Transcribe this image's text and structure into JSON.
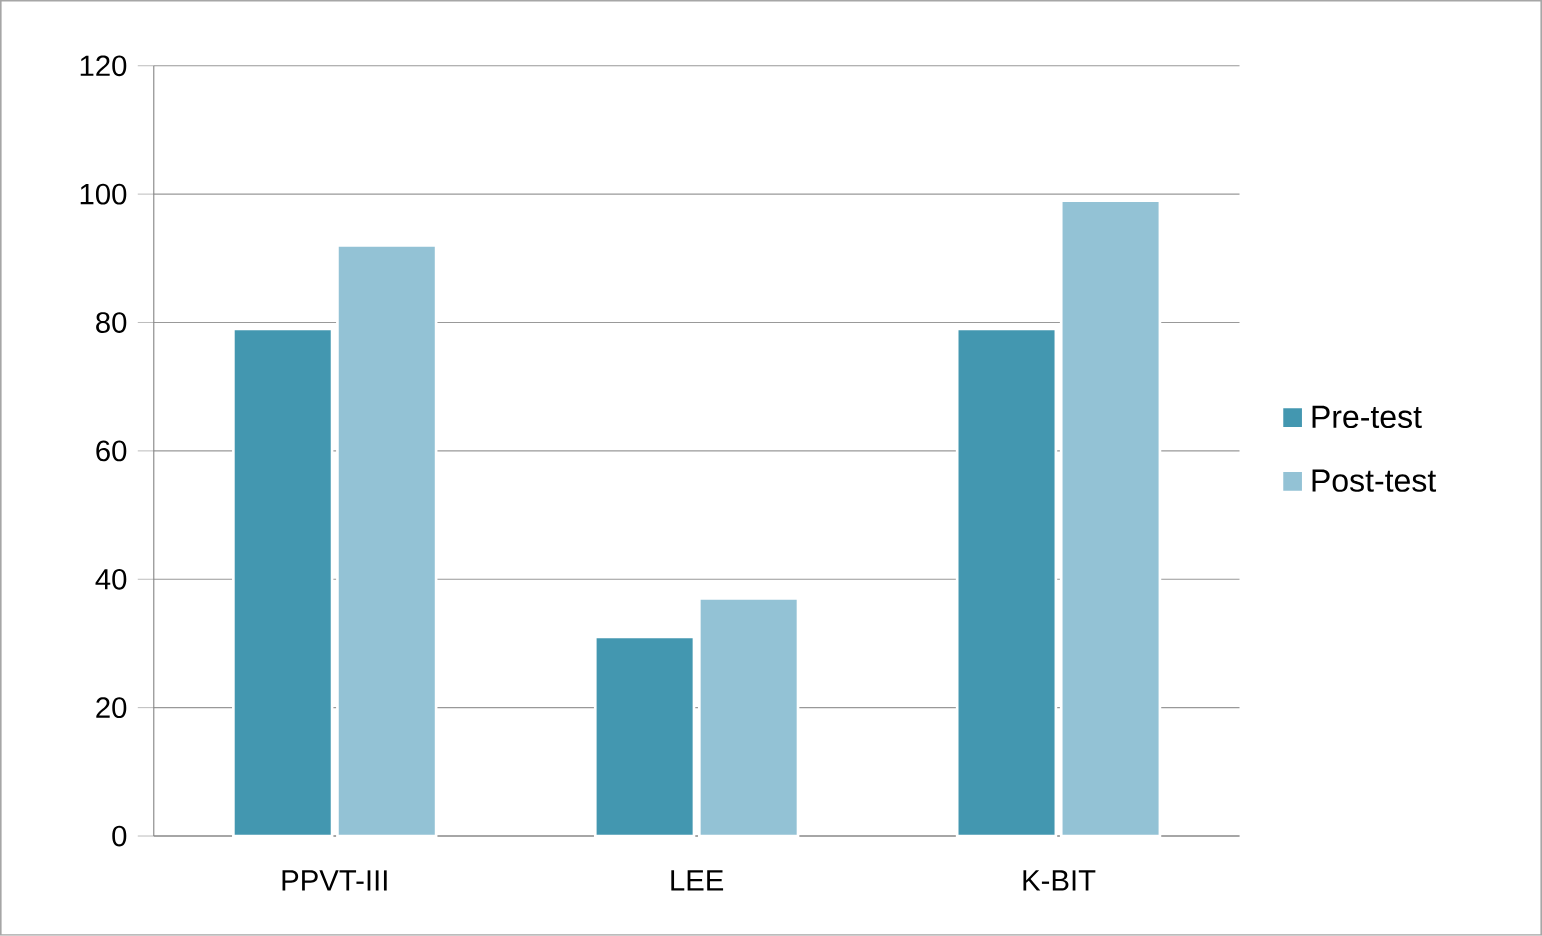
{
  "chart_data": {
    "type": "bar",
    "categories": [
      "PPVT-III",
      "LEE",
      "K-BIT"
    ],
    "series": [
      {
        "name": "Pre-test",
        "color": "#4397b0",
        "values": [
          79,
          31,
          79
        ]
      },
      {
        "name": "Post-test",
        "color": "#93c2d5",
        "values": [
          92,
          37,
          99
        ]
      }
    ],
    "ylim": [
      0,
      120
    ],
    "yticks": [
      0,
      20,
      40,
      60,
      80,
      100,
      120
    ],
    "grid": "y",
    "legend": "right"
  }
}
